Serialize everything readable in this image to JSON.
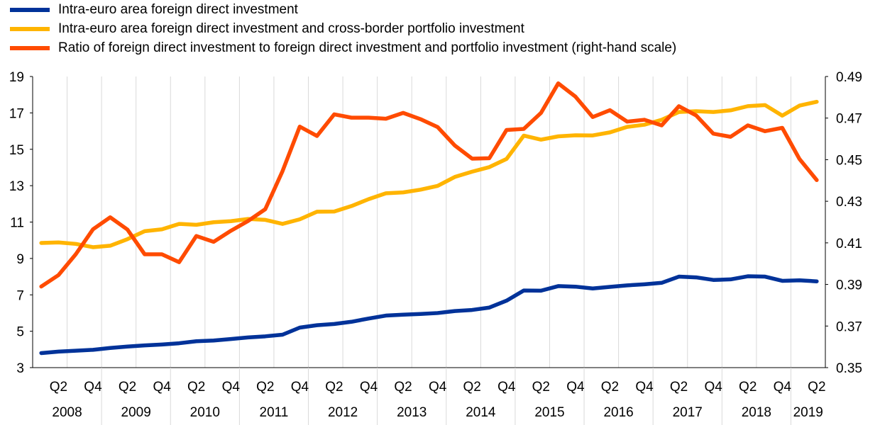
{
  "chart_data": {
    "type": "line",
    "title": "",
    "colors": {
      "fdi": "#003299",
      "fdi_portfolio": "#FFB400",
      "ratio": "#FF4B00"
    },
    "legend": [
      "Intra-euro area foreign direct investment",
      "Intra-euro area foreign direct investment and cross-border portfolio investment",
      "Ratio of foreign direct investment to foreign direct investment and portfolio investment (right-hand scale)"
    ],
    "y_left": {
      "min": 3,
      "max": 19,
      "ticks": [
        "3",
        "5",
        "7",
        "9",
        "11",
        "13",
        "15",
        "17",
        "19"
      ]
    },
    "y_right": {
      "min": 0.35,
      "max": 0.49,
      "ticks": [
        "0.35",
        "0.37",
        "0.39",
        "0.41",
        "0.43",
        "0.45",
        "0.47",
        "0.49"
      ]
    },
    "quarter_labels": [
      "Q2",
      "Q4",
      "Q2",
      "Q4",
      "Q2",
      "Q4",
      "Q2",
      "Q4",
      "Q2",
      "Q4",
      "Q2",
      "Q4",
      "Q2",
      "Q4",
      "Q2",
      "Q4",
      "Q2",
      "Q4",
      "Q2",
      "Q4",
      "Q2",
      "Q4",
      "Q2",
      "Q4"
    ],
    "year_labels": [
      "2008",
      "2009",
      "2010",
      "2011",
      "2012",
      "2013",
      "2014",
      "2015",
      "2016",
      "2017",
      "2018",
      "2019"
    ],
    "series": [
      {
        "name": "Intra-euro area foreign direct investment",
        "axis": "left",
        "values": [
          3.8,
          3.88,
          3.93,
          3.98,
          4.08,
          4.16,
          4.22,
          4.27,
          4.34,
          4.45,
          4.49,
          4.57,
          4.66,
          4.72,
          4.81,
          5.2,
          5.33,
          5.4,
          5.52,
          5.7,
          5.86,
          5.91,
          5.95,
          6.0,
          6.11,
          6.17,
          6.3,
          6.68,
          7.24,
          7.23,
          7.48,
          7.45,
          7.35,
          7.44,
          7.52,
          7.58,
          7.66,
          8.0,
          7.96,
          7.82,
          7.85,
          8.02,
          8.0,
          7.77,
          7.8,
          7.74
        ]
      },
      {
        "name": "Intra-euro area foreign direct investment and cross-border portfolio investment",
        "axis": "left",
        "values": [
          9.85,
          9.88,
          9.8,
          9.62,
          9.7,
          10.06,
          10.5,
          10.6,
          10.9,
          10.85,
          10.99,
          11.05,
          11.17,
          11.12,
          10.9,
          11.15,
          11.57,
          11.58,
          11.88,
          12.26,
          12.58,
          12.63,
          12.78,
          12.99,
          13.48,
          13.77,
          14.02,
          14.47,
          15.75,
          15.53,
          15.71,
          15.77,
          15.76,
          15.93,
          16.23,
          16.35,
          16.62,
          17.05,
          17.09,
          17.05,
          17.14,
          17.37,
          17.43,
          16.85,
          17.4,
          17.61
        ]
      },
      {
        "name": "Ratio of foreign direct investment to foreign direct investment and portfolio investment (right-hand scale)",
        "axis": "right",
        "values": [
          0.389,
          0.3945,
          0.4045,
          0.4165,
          0.4223,
          0.4164,
          0.4045,
          0.4045,
          0.4007,
          0.4133,
          0.4105,
          0.4158,
          0.4205,
          0.4262,
          0.4445,
          0.4659,
          0.4614,
          0.4718,
          0.4702,
          0.4702,
          0.4697,
          0.4725,
          0.4695,
          0.4657,
          0.4568,
          0.4505,
          0.4507,
          0.4643,
          0.4648,
          0.4725,
          0.4867,
          0.4803,
          0.4705,
          0.4738,
          0.4683,
          0.4692,
          0.4665,
          0.4757,
          0.4713,
          0.4625,
          0.461,
          0.4665,
          0.4637,
          0.4653,
          0.4503,
          0.4402
        ]
      }
    ]
  }
}
